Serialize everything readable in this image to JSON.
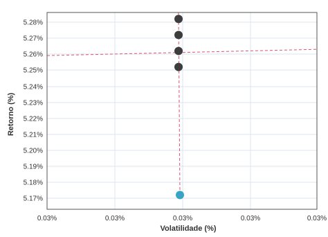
{
  "chart_data": {
    "type": "scatter",
    "xlabel": "Volatilidade (%)",
    "ylabel": "Retorno (%)",
    "x_tick_labels": [
      "0.03%",
      "0.03%",
      "0.03%",
      "0.03%",
      "0.03%"
    ],
    "y_tick_labels": [
      "5.17%",
      "5.18%",
      "5.19%",
      "5.20%",
      "5.21%",
      "5.22%",
      "5.23%",
      "5.24%",
      "5.25%",
      "5.26%",
      "5.27%",
      "5.28%"
    ],
    "ylim": [
      5.166,
      5.286
    ],
    "xlim": [
      0,
      4
    ],
    "grid": true,
    "points": [
      {
        "x": 2.0,
        "y": 5.282,
        "color": "#3d3d3d"
      },
      {
        "x": 2.0,
        "y": 5.272,
        "color": "#3d3d3d"
      },
      {
        "x": 2.0,
        "y": 5.262,
        "color": "#3d3d3d"
      },
      {
        "x": 2.0,
        "y": 5.252,
        "color": "#3d3d3d"
      },
      {
        "x": 2.0,
        "y": 5.172,
        "color": "#38a3c4"
      }
    ],
    "reference_lines": {
      "horizontal_y": 5.26,
      "vertical_x": 2.0,
      "color": "#e0506e"
    }
  }
}
